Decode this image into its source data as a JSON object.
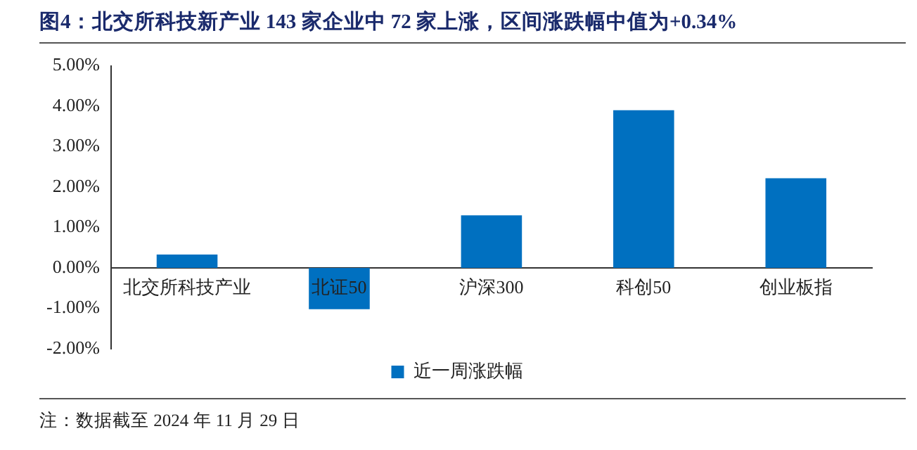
{
  "chart_data": {
    "type": "bar",
    "title": "图4：北交所科技新产业 143 家企业中 72 家上涨，区间涨跌幅中值为+0.34%",
    "categories": [
      "北交所科技产业",
      "北证50",
      "沪深300",
      "科创50",
      "创业板指"
    ],
    "series": [
      {
        "name": "近一周涨跌幅",
        "color": "#0070c0",
        "values": [
          0.33,
          -1.02,
          1.3,
          3.9,
          2.22
        ]
      }
    ],
    "ylim": [
      -2,
      5
    ],
    "yticks": [
      {
        "value": -2,
        "label": "-2.00%"
      },
      {
        "value": -1,
        "label": "-1.00%"
      },
      {
        "value": 0,
        "label": "0.00%"
      },
      {
        "value": 1,
        "label": "1.00%"
      },
      {
        "value": 2,
        "label": "2.00%"
      },
      {
        "value": 3,
        "label": "3.00%"
      },
      {
        "value": 4,
        "label": "4.00%"
      },
      {
        "value": 5,
        "label": "5.00%"
      }
    ],
    "grid": false,
    "legend": "bottom",
    "annotations": [
      "注：数据截至 2024 年 11 月 29 日"
    ]
  }
}
